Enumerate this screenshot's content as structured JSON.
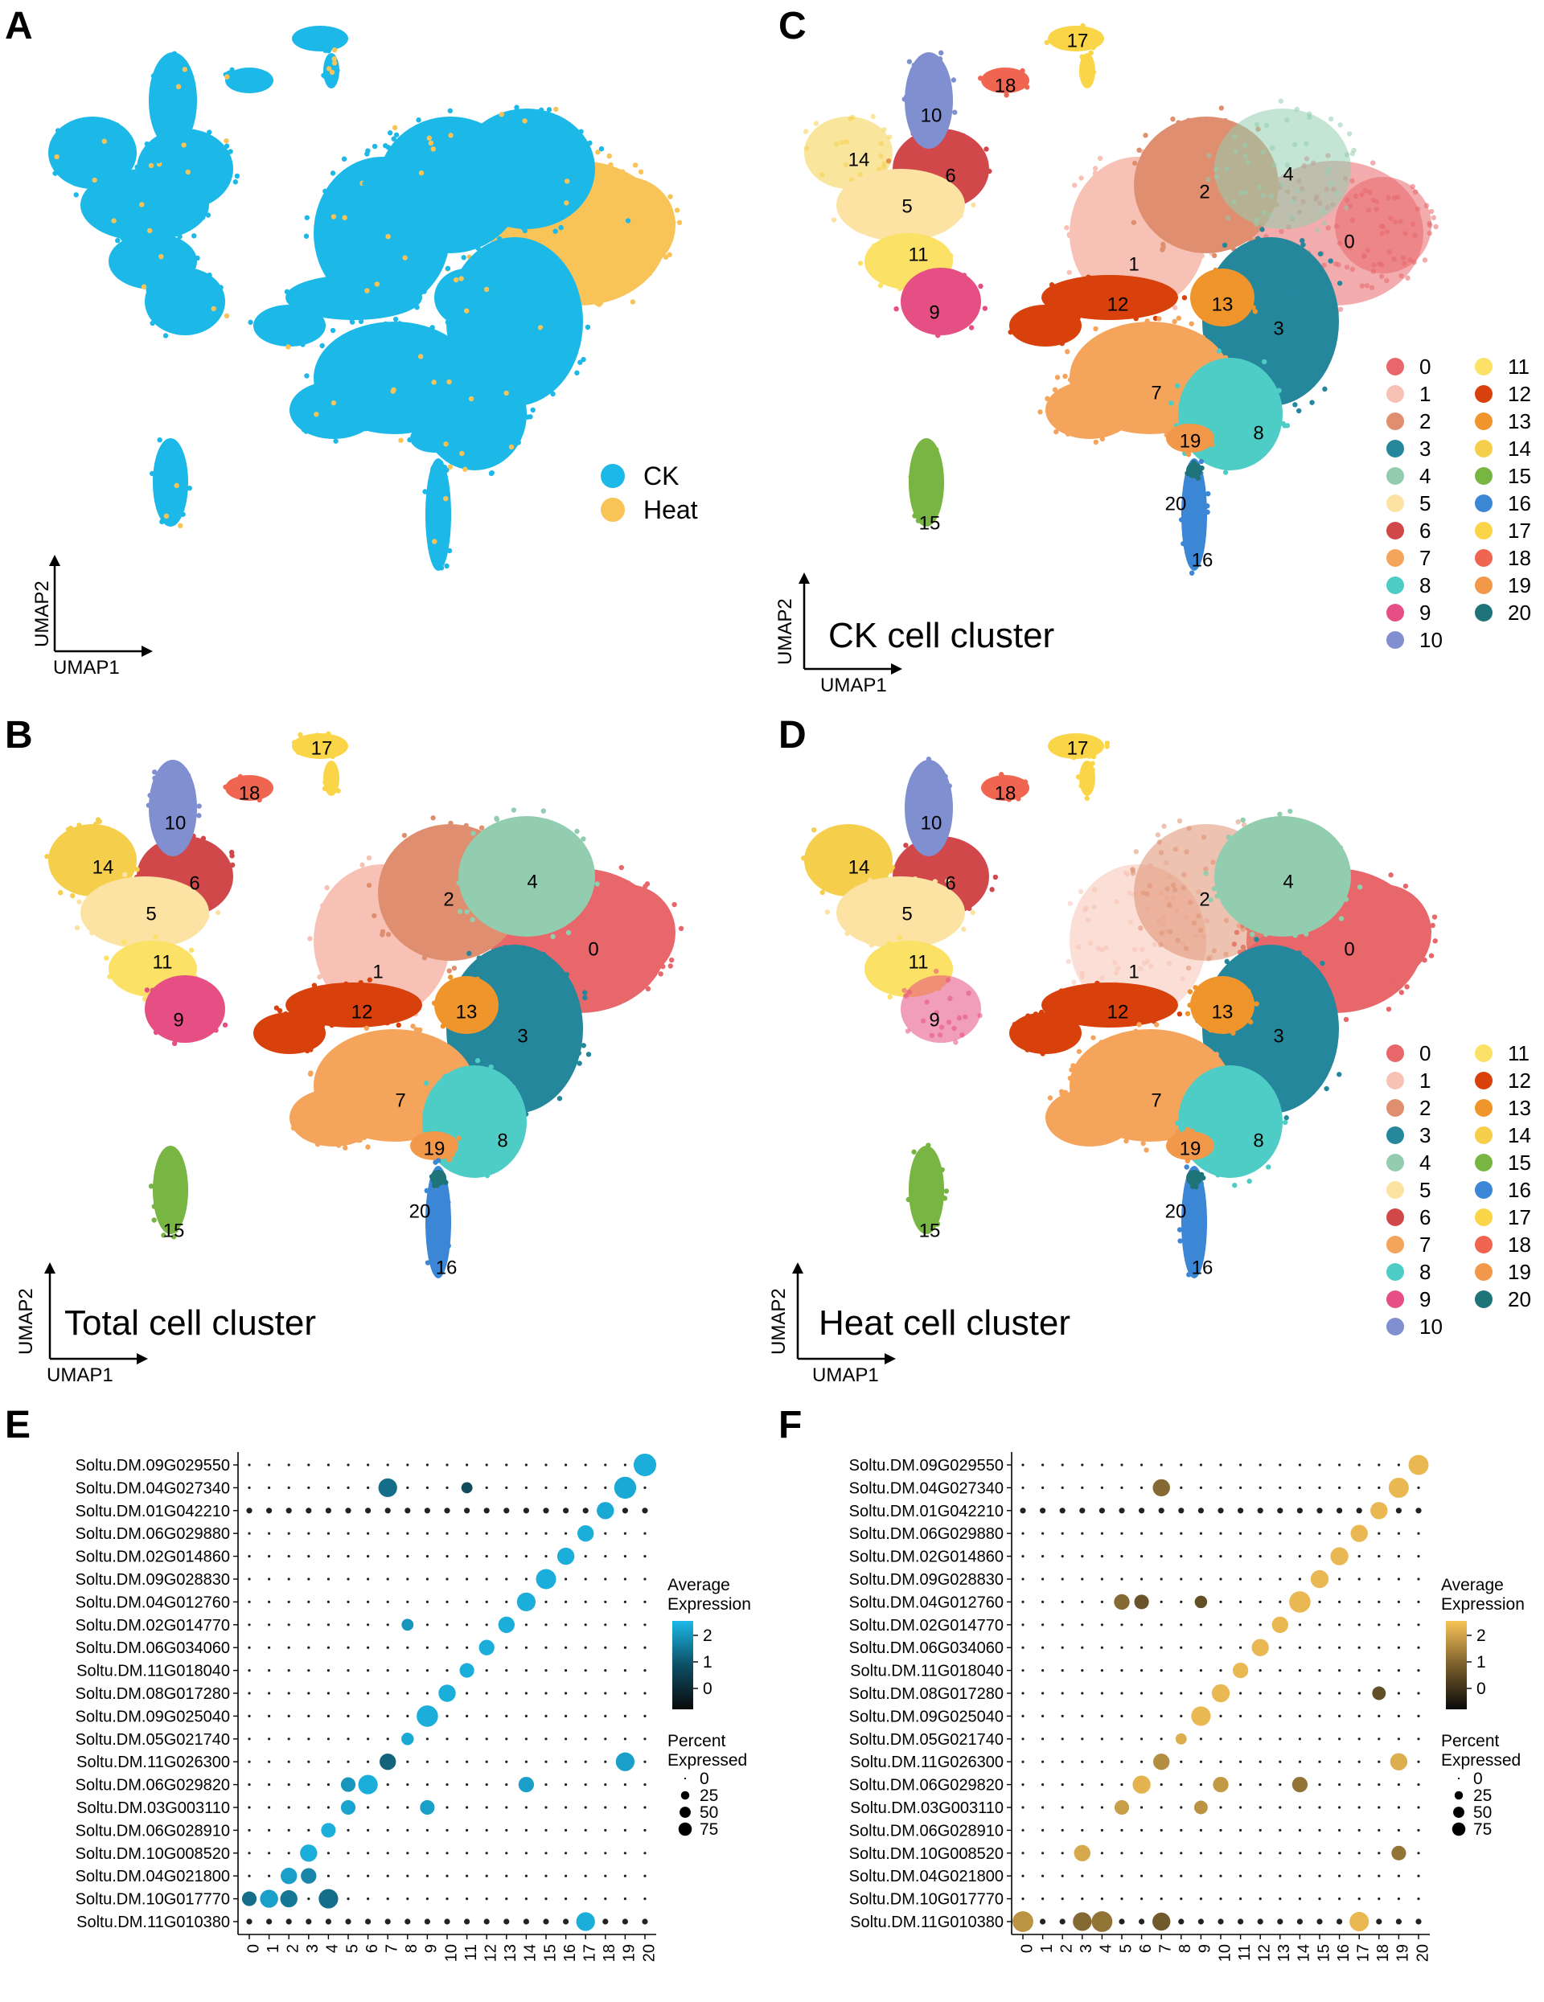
{
  "panels": {
    "A": {
      "letter": "A"
    },
    "B": {
      "letter": "B",
      "title": "Total cell cluster"
    },
    "C": {
      "letter": "C",
      "title": "CK cell cluster"
    },
    "D": {
      "letter": "D",
      "title": "Heat cell cluster"
    },
    "E": {
      "letter": "E"
    },
    "F": {
      "letter": "F"
    }
  },
  "umap_axes": {
    "x": "UMAP1",
    "y": "UMAP2"
  },
  "condition_legend": [
    {
      "name": "CK",
      "color": "#1cb8e8"
    },
    {
      "name": "Heat",
      "color": "#f8c357"
    }
  ],
  "clusters": [
    "0",
    "1",
    "2",
    "3",
    "4",
    "5",
    "6",
    "7",
    "8",
    "9",
    "10",
    "11",
    "12",
    "13",
    "14",
    "15",
    "16",
    "17",
    "18",
    "19",
    "20"
  ],
  "cluster_colors": [
    "#e8676b",
    "#f7c2b5",
    "#df8f6f",
    "#25879c",
    "#93cdb0",
    "#fce3a3",
    "#d1484b",
    "#f5a45c",
    "#4dcdc5",
    "#e64f84",
    "#7f8fd0",
    "#fbe166",
    "#d8400c",
    "#ef952c",
    "#f5cf4c",
    "#79b542",
    "#3c86d6",
    "#fbd548",
    "#ef6550",
    "#f2984a",
    "#1e7478"
  ],
  "chart_data": [
    {
      "type": "dotplot",
      "panel": "E",
      "genes": [
        "Soltu.DM.09G029550",
        "Soltu.DM.04G027340",
        "Soltu.DM.01G042210",
        "Soltu.DM.06G029880",
        "Soltu.DM.02G014860",
        "Soltu.DM.09G028830",
        "Soltu.DM.04G012760",
        "Soltu.DM.02G014770",
        "Soltu.DM.06G034060",
        "Soltu.DM.11G018040",
        "Soltu.DM.08G017280",
        "Soltu.DM.09G025040",
        "Soltu.DM.05G021740",
        "Soltu.DM.11G026300",
        "Soltu.DM.06G029820",
        "Soltu.DM.03G003110",
        "Soltu.DM.06G028910",
        "Soltu.DM.10G008520",
        "Soltu.DM.04G021800",
        "Soltu.DM.10G017770",
        "Soltu.DM.11G010380"
      ],
      "clusters": [
        "0",
        "1",
        "2",
        "3",
        "4",
        "5",
        "6",
        "7",
        "8",
        "9",
        "10",
        "11",
        "12",
        "13",
        "14",
        "15",
        "16",
        "17",
        "18",
        "19",
        "20"
      ],
      "color_title": "Average Expression",
      "color_ticks": [
        "2",
        "1",
        "0"
      ],
      "color_range": [
        -1,
        2.5
      ],
      "color_low": "#0a0a0a",
      "color_high": "#1cb8e8",
      "size_title": "Percent Expressed",
      "size_ticks": [
        "0",
        "25",
        "50",
        "75"
      ],
      "markers": [
        {
          "gene": 0,
          "cluster": 20,
          "avg": 2.3,
          "pct": 85
        },
        {
          "gene": 1,
          "cluster": 19,
          "avg": 2.2,
          "pct": 80
        },
        {
          "gene": 1,
          "cluster": 7,
          "avg": 1.0,
          "pct": 55
        },
        {
          "gene": 1,
          "cluster": 11,
          "avg": 0.3,
          "pct": 15
        },
        {
          "gene": 2,
          "cluster": 18,
          "avg": 2.2,
          "pct": 45
        },
        {
          "gene": 3,
          "cluster": 17,
          "avg": 2.3,
          "pct": 40
        },
        {
          "gene": 4,
          "cluster": 16,
          "avg": 2.3,
          "pct": 45
        },
        {
          "gene": 5,
          "cluster": 15,
          "avg": 2.3,
          "pct": 65
        },
        {
          "gene": 6,
          "cluster": 14,
          "avg": 2.3,
          "pct": 55
        },
        {
          "gene": 7,
          "cluster": 13,
          "avg": 2.3,
          "pct": 40
        },
        {
          "gene": 7,
          "cluster": 8,
          "avg": 1.8,
          "pct": 18
        },
        {
          "gene": 8,
          "cluster": 12,
          "avg": 2.3,
          "pct": 35
        },
        {
          "gene": 9,
          "cluster": 11,
          "avg": 2.3,
          "pct": 30
        },
        {
          "gene": 10,
          "cluster": 10,
          "avg": 2.3,
          "pct": 45
        },
        {
          "gene": 11,
          "cluster": 9,
          "avg": 2.3,
          "pct": 75
        },
        {
          "gene": 12,
          "cluster": 8,
          "avg": 2.2,
          "pct": 20
        },
        {
          "gene": 13,
          "cluster": 19,
          "avg": 2.0,
          "pct": 55
        },
        {
          "gene": 13,
          "cluster": 7,
          "avg": 0.8,
          "pct": 40
        },
        {
          "gene": 14,
          "cluster": 6,
          "avg": 2.3,
          "pct": 60
        },
        {
          "gene": 14,
          "cluster": 14,
          "avg": 2.0,
          "pct": 35
        },
        {
          "gene": 14,
          "cluster": 5,
          "avg": 1.8,
          "pct": 30
        },
        {
          "gene": 15,
          "cluster": 5,
          "avg": 2.1,
          "pct": 30
        },
        {
          "gene": 15,
          "cluster": 9,
          "avg": 2.0,
          "pct": 30
        },
        {
          "gene": 16,
          "cluster": 4,
          "avg": 2.3,
          "pct": 30
        },
        {
          "gene": 17,
          "cluster": 3,
          "avg": 2.3,
          "pct": 45
        },
        {
          "gene": 18,
          "cluster": 2,
          "avg": 2.0,
          "pct": 40
        },
        {
          "gene": 18,
          "cluster": 3,
          "avg": 1.5,
          "pct": 35
        },
        {
          "gene": 19,
          "cluster": 1,
          "avg": 2.0,
          "pct": 50
        },
        {
          "gene": 19,
          "cluster": 2,
          "avg": 1.2,
          "pct": 45
        },
        {
          "gene": 19,
          "cluster": 4,
          "avg": 1.0,
          "pct": 60
        },
        {
          "gene": 19,
          "cluster": 0,
          "avg": 1.0,
          "pct": 30
        },
        {
          "gene": 20,
          "cluster": 17,
          "avg": 2.3,
          "pct": 55
        }
      ]
    },
    {
      "type": "dotplot",
      "panel": "F",
      "genes": [
        "Soltu.DM.09G029550",
        "Soltu.DM.04G027340",
        "Soltu.DM.01G042210",
        "Soltu.DM.06G029880",
        "Soltu.DM.02G014860",
        "Soltu.DM.09G028830",
        "Soltu.DM.04G012760",
        "Soltu.DM.02G014770",
        "Soltu.DM.06G034060",
        "Soltu.DM.11G018040",
        "Soltu.DM.08G017280",
        "Soltu.DM.09G025040",
        "Soltu.DM.05G021740",
        "Soltu.DM.11G026300",
        "Soltu.DM.06G029820",
        "Soltu.DM.03G003110",
        "Soltu.DM.06G028910",
        "Soltu.DM.10G008520",
        "Soltu.DM.04G021800",
        "Soltu.DM.10G017770",
        "Soltu.DM.11G010380"
      ],
      "clusters": [
        "0",
        "1",
        "2",
        "3",
        "4",
        "5",
        "6",
        "7",
        "8",
        "9",
        "10",
        "11",
        "12",
        "13",
        "14",
        "15",
        "16",
        "17",
        "18",
        "19",
        "20"
      ],
      "color_title": "Average Expression",
      "color_ticks": [
        "2",
        "1",
        "0"
      ],
      "color_range": [
        -1,
        2.5
      ],
      "color_low": "#0a0a0a",
      "color_high": "#f8c357",
      "size_title": "Percent Expressed",
      "size_ticks": [
        "0",
        "25",
        "50",
        "75"
      ],
      "markers": [
        {
          "gene": 0,
          "cluster": 20,
          "avg": 2.3,
          "pct": 65
        },
        {
          "gene": 1,
          "cluster": 19,
          "avg": 2.3,
          "pct": 65
        },
        {
          "gene": 1,
          "cluster": 7,
          "avg": 0.8,
          "pct": 45
        },
        {
          "gene": 2,
          "cluster": 18,
          "avg": 2.3,
          "pct": 45
        },
        {
          "gene": 3,
          "cluster": 17,
          "avg": 2.3,
          "pct": 45
        },
        {
          "gene": 4,
          "cluster": 16,
          "avg": 2.3,
          "pct": 50
        },
        {
          "gene": 5,
          "cluster": 15,
          "avg": 2.3,
          "pct": 50
        },
        {
          "gene": 6,
          "cluster": 14,
          "avg": 2.3,
          "pct": 75
        },
        {
          "gene": 6,
          "cluster": 5,
          "avg": 0.8,
          "pct": 35
        },
        {
          "gene": 6,
          "cluster": 6,
          "avg": 0.4,
          "pct": 30
        },
        {
          "gene": 6,
          "cluster": 9,
          "avg": 0.3,
          "pct": 20
        },
        {
          "gene": 7,
          "cluster": 13,
          "avg": 2.3,
          "pct": 40
        },
        {
          "gene": 8,
          "cluster": 12,
          "avg": 2.3,
          "pct": 45
        },
        {
          "gene": 9,
          "cluster": 11,
          "avg": 2.3,
          "pct": 35
        },
        {
          "gene": 10,
          "cluster": 10,
          "avg": 2.3,
          "pct": 50
        },
        {
          "gene": 10,
          "cluster": 18,
          "avg": 0.3,
          "pct": 25
        },
        {
          "gene": 11,
          "cluster": 9,
          "avg": 2.3,
          "pct": 60
        },
        {
          "gene": 12,
          "cluster": 8,
          "avg": 2.1,
          "pct": 15
        },
        {
          "gene": 13,
          "cluster": 19,
          "avg": 2.1,
          "pct": 45
        },
        {
          "gene": 13,
          "cluster": 7,
          "avg": 1.5,
          "pct": 40
        },
        {
          "gene": 14,
          "cluster": 6,
          "avg": 2.2,
          "pct": 50
        },
        {
          "gene": 14,
          "cluster": 10,
          "avg": 1.7,
          "pct": 35
        },
        {
          "gene": 14,
          "cluster": 14,
          "avg": 1.0,
          "pct": 35
        },
        {
          "gene": 15,
          "cluster": 5,
          "avg": 1.8,
          "pct": 30
        },
        {
          "gene": 15,
          "cluster": 9,
          "avg": 1.6,
          "pct": 25
        },
        {
          "gene": 17,
          "cluster": 3,
          "avg": 2.0,
          "pct": 40
        },
        {
          "gene": 17,
          "cluster": 19,
          "avg": 1.0,
          "pct": 30
        },
        {
          "gene": 20,
          "cluster": 0,
          "avg": 1.6,
          "pct": 70
        },
        {
          "gene": 20,
          "cluster": 4,
          "avg": 1.0,
          "pct": 70
        },
        {
          "gene": 20,
          "cluster": 3,
          "avg": 0.8,
          "pct": 55
        },
        {
          "gene": 20,
          "cluster": 7,
          "avg": 0.5,
          "pct": 50
        },
        {
          "gene": 20,
          "cluster": 17,
          "avg": 2.3,
          "pct": 60
        }
      ]
    }
  ]
}
